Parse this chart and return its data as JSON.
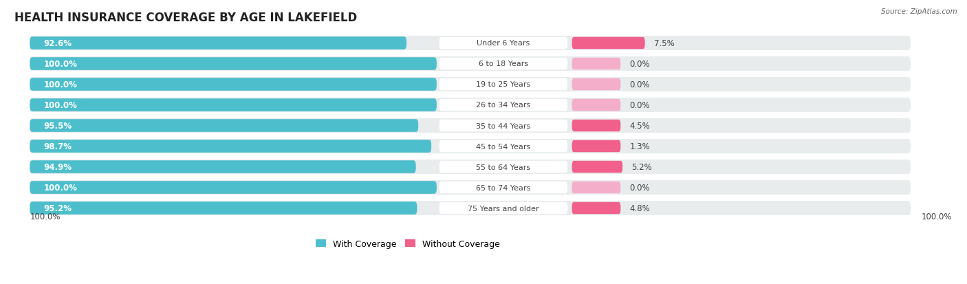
{
  "title": "HEALTH INSURANCE COVERAGE BY AGE IN LAKEFIELD",
  "source": "Source: ZipAtlas.com",
  "categories": [
    "Under 6 Years",
    "6 to 18 Years",
    "19 to 25 Years",
    "26 to 34 Years",
    "35 to 44 Years",
    "45 to 54 Years",
    "55 to 64 Years",
    "65 to 74 Years",
    "75 Years and older"
  ],
  "with_coverage": [
    92.6,
    100.0,
    100.0,
    100.0,
    95.5,
    98.7,
    94.9,
    100.0,
    95.2
  ],
  "without_coverage": [
    7.5,
    0.0,
    0.0,
    0.0,
    4.5,
    1.3,
    5.2,
    0.0,
    4.8
  ],
  "color_with_teal": "#4DBFCC",
  "color_without_pink": "#F0608A",
  "color_without_light_pink": "#F4AECA",
  "color_bg_row": "#E8ECED",
  "color_bg_figure": "#FFFFFF",
  "color_label_bubble": "#FFFFFF",
  "title_fontsize": 12,
  "label_fontsize": 8.5,
  "legend_fontsize": 9,
  "bar_height": 0.62,
  "with_label_color": "#FFFFFF",
  "without_label_color": "#444444",
  "cat_label_color": "#444444"
}
